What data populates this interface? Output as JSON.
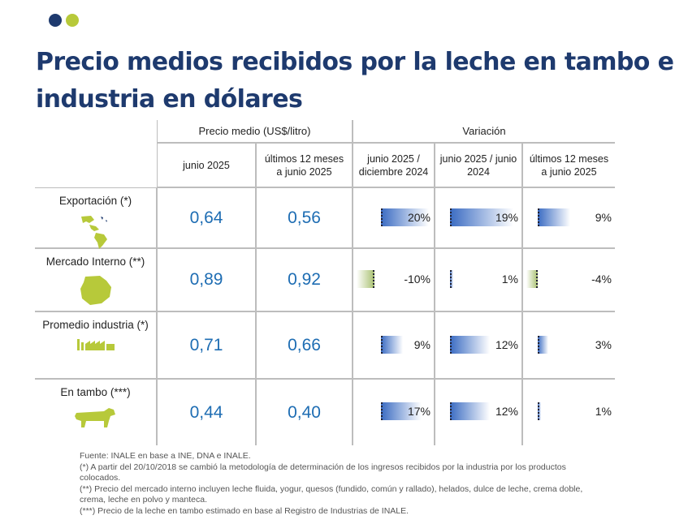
{
  "brand": {
    "dot1_color": "#1e3a6e",
    "dot2_color": "#b7c93a"
  },
  "title": {
    "line1": "Precio medios recibidos por la leche en tambo e",
    "line2": "industria en dólares"
  },
  "title_color": "#1e3a6e",
  "table": {
    "group_price": "Precio medio (US$/litro)",
    "group_var": "Variación",
    "columns": [
      {
        "line1": "junio 2025",
        "line2": ""
      },
      {
        "line1": "últimos 12 meses",
        "line2": "a junio 2025"
      },
      {
        "line1": "junio 2025 /",
        "line2": "diciembre 2024"
      },
      {
        "line1": "junio 2025 / junio",
        "line2": "2024"
      },
      {
        "line1": "últimos 12 meses",
        "line2": "a junio 2025"
      }
    ],
    "rows": [
      {
        "label": "Exportación (*)",
        "icon": "map-americas-icon",
        "price_jun": "0,64",
        "price_12m": "0,56",
        "vars": [
          {
            "text": "20%",
            "value": 20
          },
          {
            "text": "19%",
            "value": 19
          },
          {
            "text": "9%",
            "value": 9
          }
        ]
      },
      {
        "label": "Mercado Interno (**)",
        "icon": "uruguay-map-icon",
        "price_jun": "0,89",
        "price_12m": "0,92",
        "vars": [
          {
            "text": "-10%",
            "value": -10
          },
          {
            "text": "1%",
            "value": 1
          },
          {
            "text": "-4%",
            "value": -4
          }
        ]
      },
      {
        "label": "Promedio industria (*)",
        "icon": "factory-icon",
        "price_jun": "0,71",
        "price_12m": "0,66",
        "vars": [
          {
            "text": "9%",
            "value": 9
          },
          {
            "text": "12%",
            "value": 12
          },
          {
            "text": "3%",
            "value": 3
          }
        ]
      },
      {
        "label": "En tambo (***)",
        "icon": "cow-icon",
        "price_jun": "0,44",
        "price_12m": "0,40",
        "vars": [
          {
            "text": "17%",
            "value": 17
          },
          {
            "text": "12%",
            "value": 12
          },
          {
            "text": "1%",
            "value": 1
          }
        ]
      }
    ],
    "positive_color": "#3a6bc2",
    "negative_color": "#a8c070"
  },
  "notes": [
    "Fuente: INALE en base a INE, DNA e INALE.",
    "(*) A partir del 20/10/2018 se cambió la metodología de determinación de los ingresos recibidos por la industria por los productos colocados.",
    "(**) Precio del mercado interno incluyen leche fluida, yogur, quesos (fundido, común y rallado), helados, dulce de leche, crema doble, crema, leche en polvo y manteca.",
    "(***) Precio de la leche en tambo estimado en base al Registro de Industrias de INALE."
  ]
}
